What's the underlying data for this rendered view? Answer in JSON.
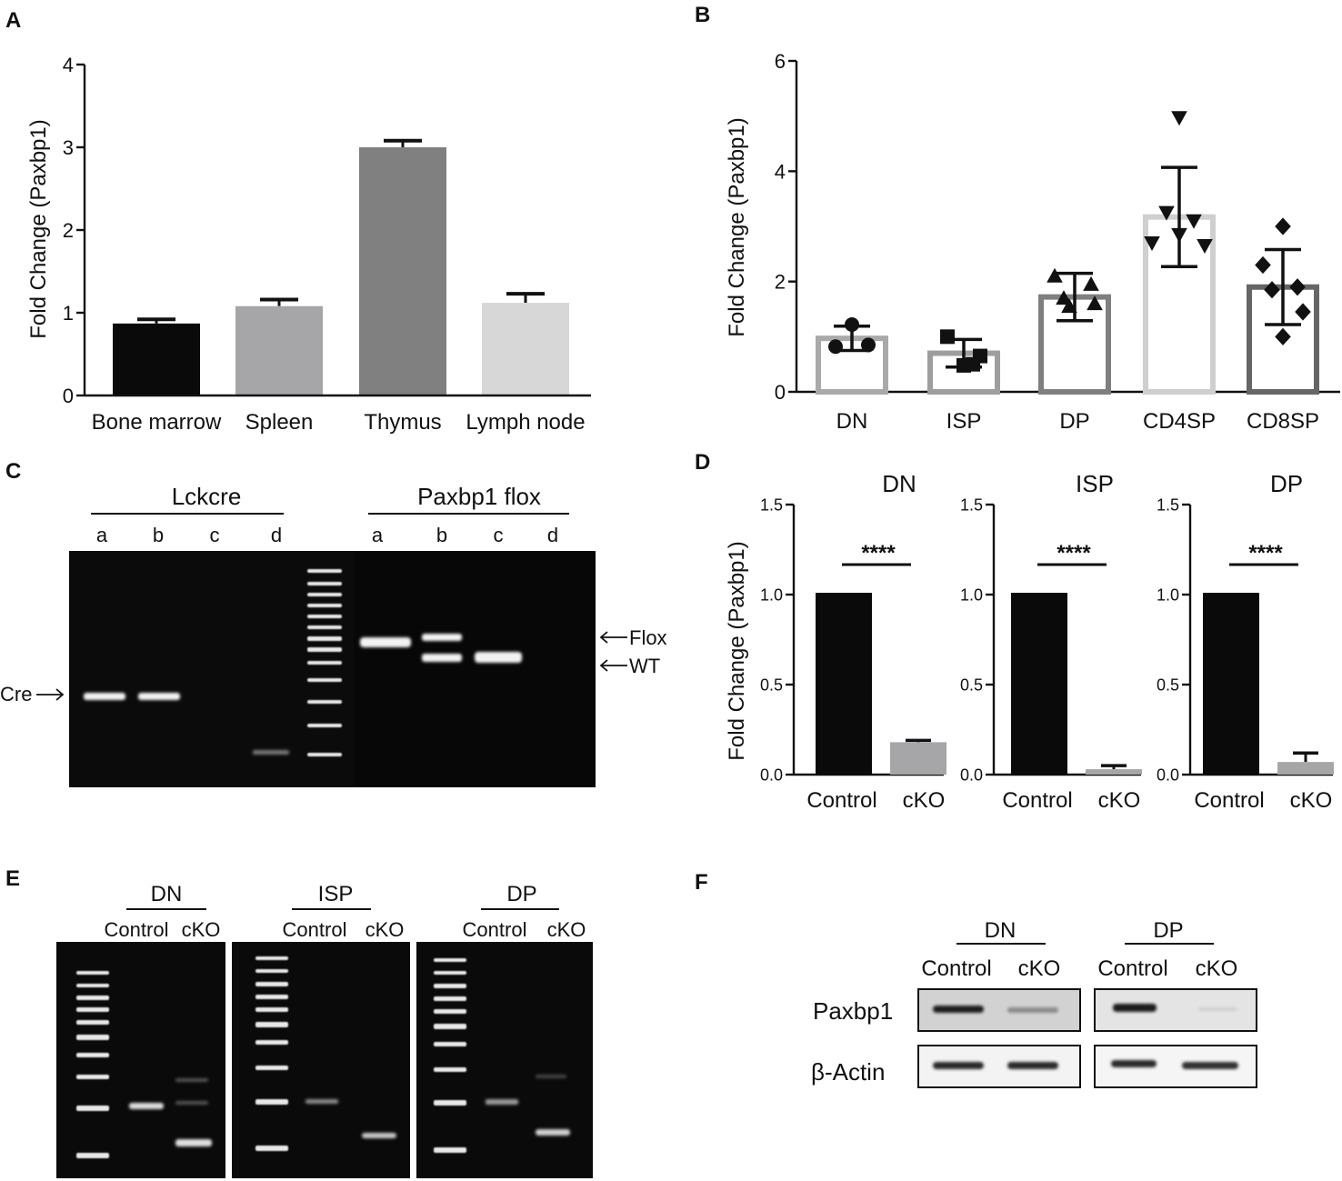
{
  "panel_labels": [
    "A",
    "B",
    "C",
    "D",
    "E",
    "F"
  ],
  "chart_data": [
    {
      "id": "A",
      "type": "bar",
      "ylabel": "Fold Change (Paxbp1)",
      "ylim": [
        0,
        4
      ],
      "yticks": [
        0,
        1,
        2,
        3,
        4
      ],
      "categories": [
        "Bone marrow",
        "Spleen",
        "Thymus",
        "Lymph node"
      ],
      "values": [
        0.87,
        1.08,
        3.0,
        1.12
      ],
      "errors": [
        0.05,
        0.08,
        0.08,
        0.11
      ],
      "colors": [
        "#0a0a0a",
        "#a6a6a8",
        "#808080",
        "#d7d7d7"
      ]
    },
    {
      "id": "B",
      "type": "bar",
      "ylabel": "Fold Change (Paxbp1)",
      "ylim": [
        0,
        6
      ],
      "yticks": [
        0,
        2,
        4,
        6
      ],
      "categories": [
        "DN",
        "ISP",
        "DP",
        "CD4SP",
        "CD8SP"
      ],
      "values": [
        0.97,
        0.7,
        1.72,
        3.17,
        1.9
      ],
      "errors": [
        0.22,
        0.25,
        0.43,
        0.9,
        0.68
      ],
      "outline_colors": [
        "#a9a9a9",
        "#9e9e9e",
        "#7f7f7f",
        "#cfcfcf",
        "#666666"
      ],
      "markers": [
        "circle",
        "square",
        "triangle-up",
        "triangle-down",
        "diamond"
      ],
      "points": [
        [
          0.82,
          1.22,
          0.85
        ],
        [
          1.0,
          0.48,
          0.65,
          0.5
        ],
        [
          2.1,
          1.95,
          1.7,
          1.6,
          1.55
        ],
        [
          4.97,
          3.25,
          3.1,
          2.7,
          2.65,
          2.85
        ],
        [
          3.0,
          2.3,
          1.9,
          1.85,
          1.45,
          1.0
        ]
      ]
    },
    {
      "id": "D",
      "type": "bar",
      "ylabel": "Fold Change (Paxbp1)",
      "ylim": [
        0,
        1.5
      ],
      "yticks": [
        "0.0",
        "0.5",
        "1.0",
        "1.5"
      ],
      "subplots": [
        {
          "title": "DN",
          "categories": [
            "Control",
            "cKO"
          ],
          "values": [
            1.01,
            0.18
          ],
          "errors": [
            0,
            0.01
          ],
          "significance": "****"
        },
        {
          "title": "ISP",
          "categories": [
            "Control",
            "cKO"
          ],
          "values": [
            1.01,
            0.03
          ],
          "errors": [
            0,
            0.02
          ],
          "significance": "****"
        },
        {
          "title": "DP",
          "categories": [
            "Control",
            "cKO"
          ],
          "values": [
            1.01,
            0.07
          ],
          "errors": [
            0,
            0.05
          ],
          "significance": "****"
        }
      ],
      "colors": [
        "#0a0a0a",
        "#a6a6a8"
      ]
    }
  ],
  "gels": {
    "C": {
      "left_group": "Lckcre",
      "right_group": "Paxbp1 flox",
      "lanes_left": [
        "a",
        "b",
        "c",
        "d"
      ],
      "lanes_right": [
        "a",
        "b",
        "c",
        "d"
      ],
      "arrow_flox": "Flox",
      "arrow_wt": "WT",
      "arrow_cre": "Cre"
    },
    "E": [
      {
        "title": "DN",
        "lanes": [
          "Control",
          "cKO"
        ]
      },
      {
        "title": "ISP",
        "lanes": [
          "Control",
          "cKO"
        ]
      },
      {
        "title": "DP",
        "lanes": [
          "Control",
          "cKO"
        ]
      }
    ]
  },
  "western": {
    "groups": [
      {
        "title": "DN",
        "lanes": [
          "Control",
          "cKO"
        ]
      },
      {
        "title": "DP",
        "lanes": [
          "Control",
          "cKO"
        ]
      }
    ],
    "rows": [
      "Paxbp1",
      "β-Actin"
    ]
  }
}
